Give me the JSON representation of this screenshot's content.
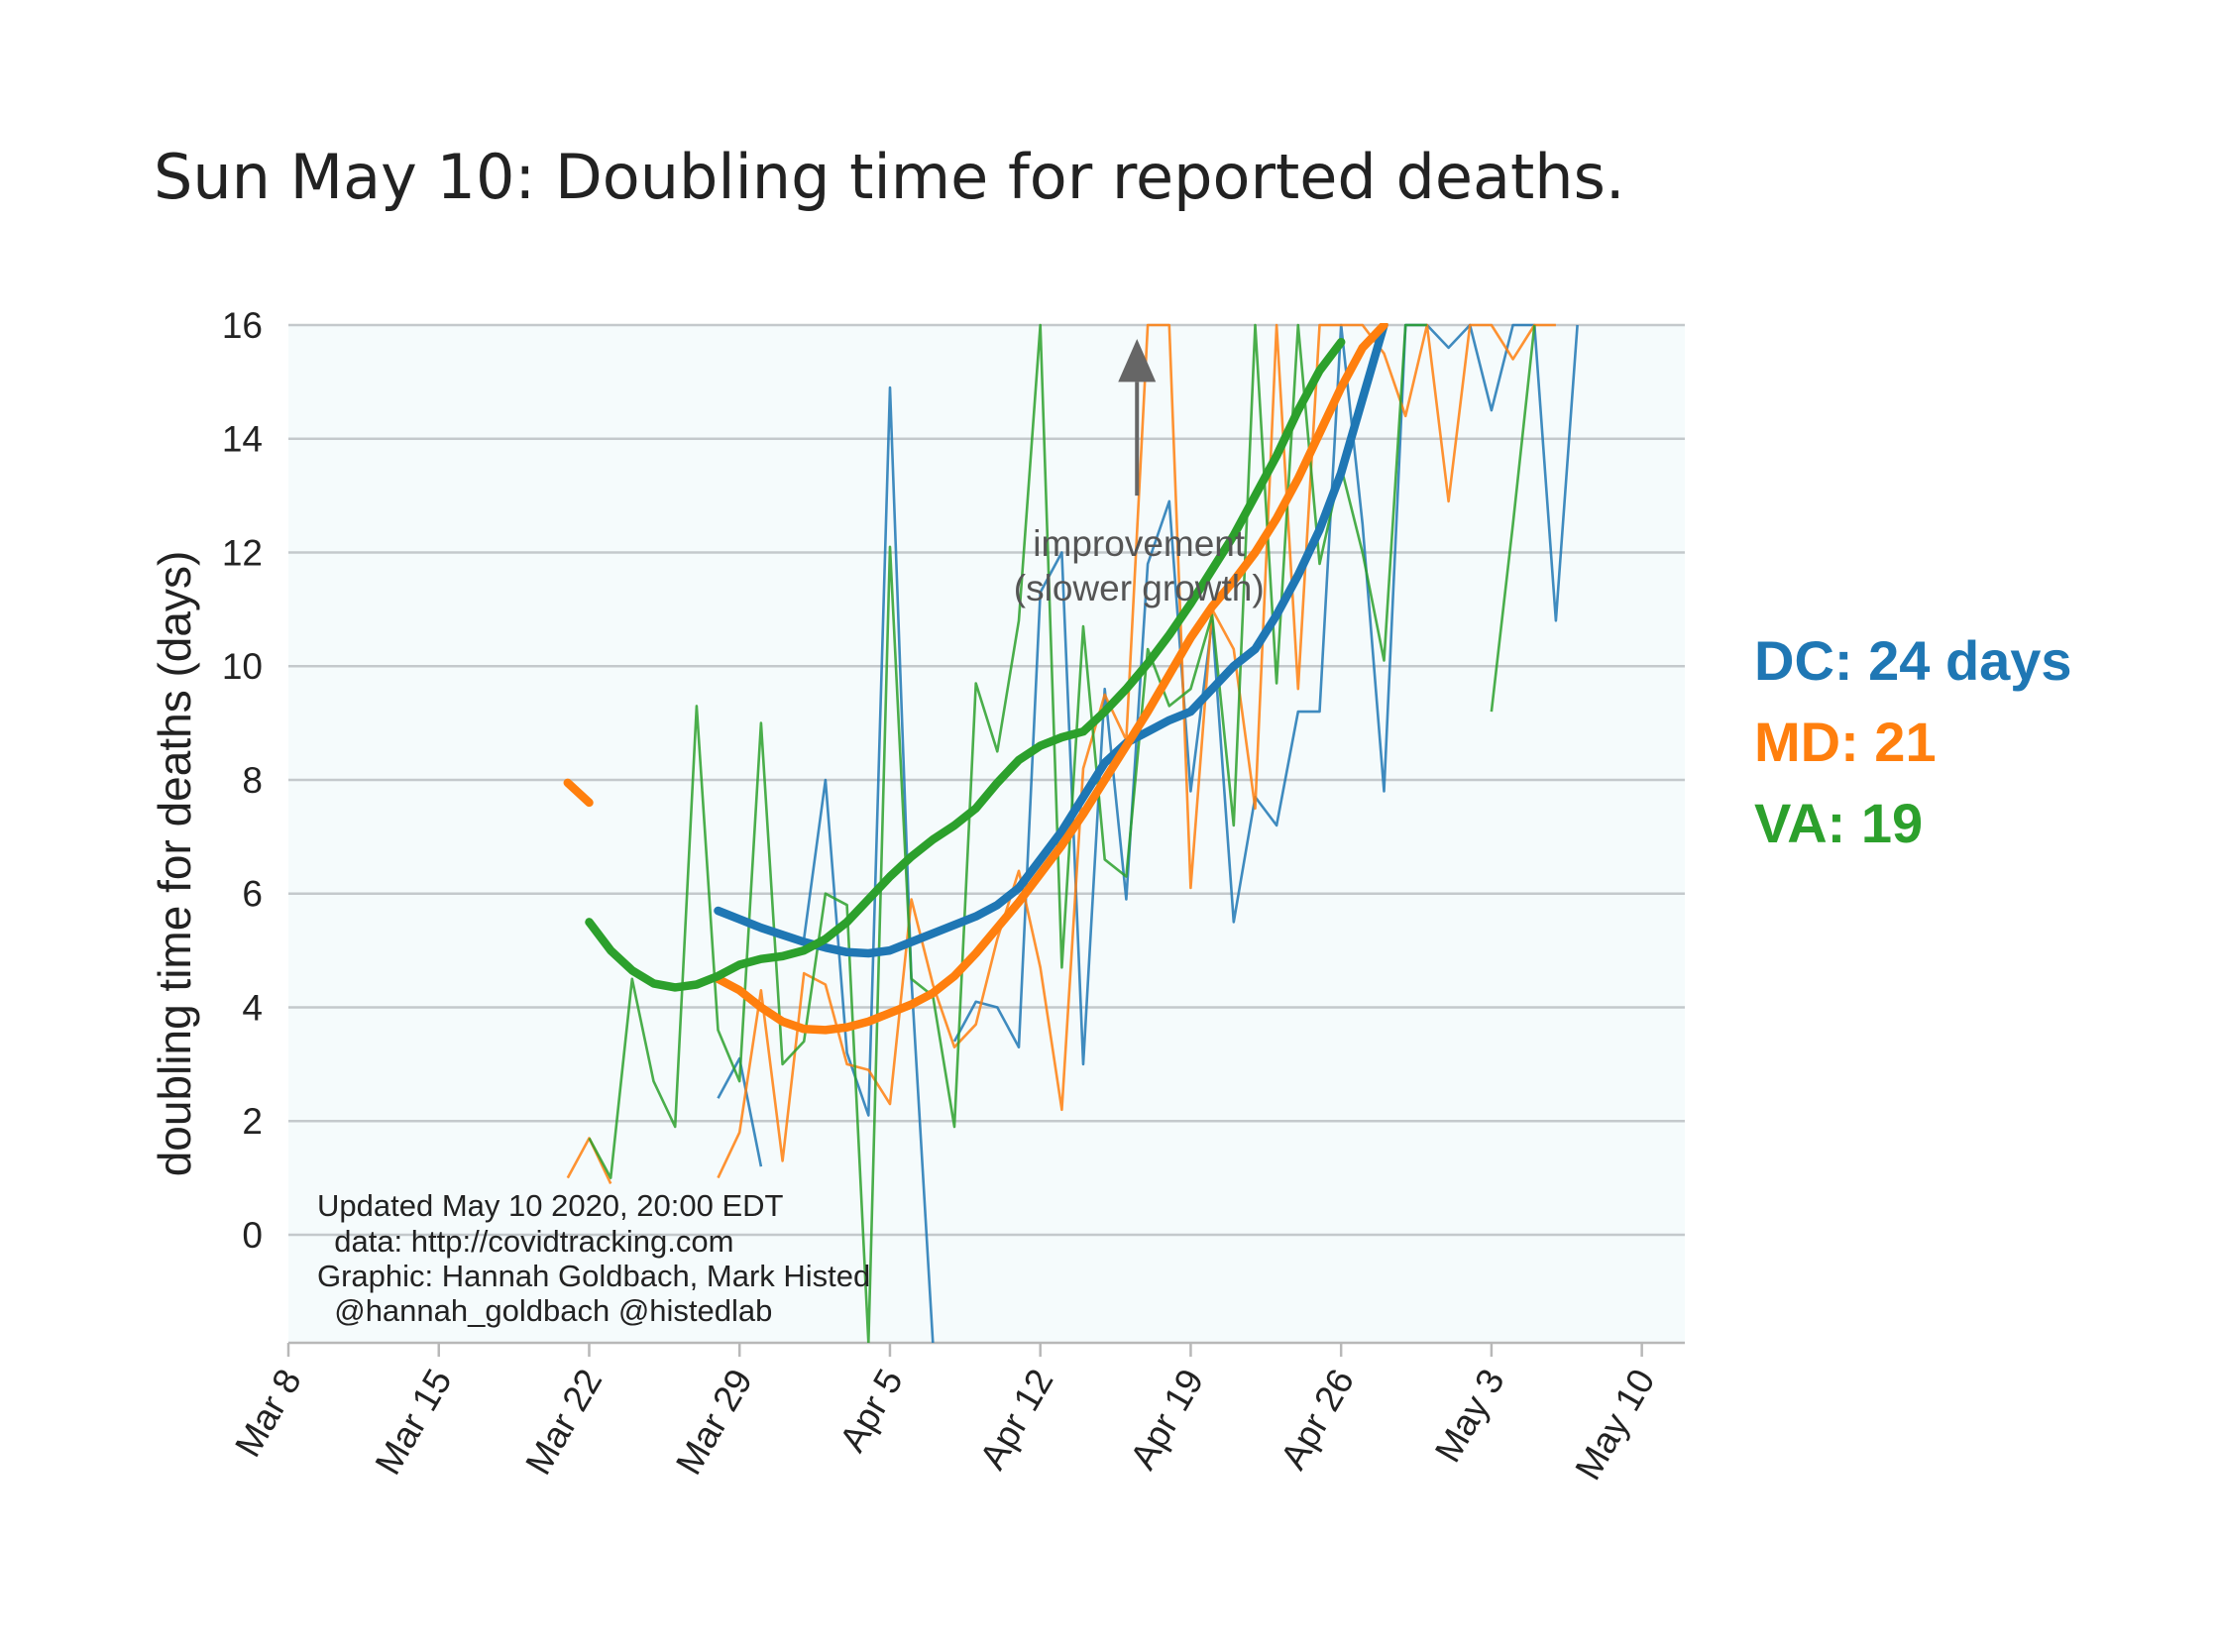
{
  "title": "Sun May 10: Doubling time for reported deaths.",
  "chart_data": {
    "type": "line",
    "ylabel": "doubling time for deaths (days)",
    "xlabel": "",
    "ylim": [
      -1.9,
      16
    ],
    "yticks": [
      0,
      2,
      4,
      6,
      8,
      10,
      12,
      14,
      16
    ],
    "xlim": [
      "2020-03-08",
      "2020-05-11"
    ],
    "xticks": [
      "Mar 8",
      "Mar 15",
      "Mar 22",
      "Mar 29",
      "Apr 5",
      "Apr 12",
      "Apr 19",
      "Apr 26",
      "May 3",
      "May 10"
    ],
    "grid": "horizontal",
    "background": "#f5fbfc",
    "series": [
      {
        "name": "DC",
        "color": "#1f77b4",
        "smoothed": [
          [
            20,
            5.7
          ],
          [
            21,
            5.55
          ],
          [
            22,
            5.4
          ],
          [
            24,
            5.15
          ],
          [
            25,
            5.05
          ],
          [
            26,
            4.97
          ],
          [
            27,
            4.95
          ],
          [
            28,
            5.0
          ],
          [
            29,
            5.15
          ],
          [
            30,
            5.3
          ],
          [
            31,
            5.45
          ],
          [
            32,
            5.6
          ],
          [
            33,
            5.8
          ],
          [
            34,
            6.1
          ],
          [
            35,
            6.6
          ],
          [
            36,
            7.1
          ],
          [
            37,
            7.7
          ],
          [
            38,
            8.3
          ],
          [
            39,
            8.65
          ],
          [
            40,
            8.85
          ],
          [
            41,
            9.05
          ],
          [
            42,
            9.2
          ],
          [
            43,
            9.6
          ],
          [
            44,
            10.0
          ],
          [
            45,
            10.3
          ],
          [
            46,
            10.9
          ],
          [
            47,
            11.6
          ],
          [
            48,
            12.4
          ],
          [
            49,
            13.4
          ],
          [
            50,
            14.7
          ],
          [
            51,
            16.0
          ]
        ],
        "raw": [
          [
            20,
            2.4
          ],
          [
            21,
            3.1
          ],
          [
            22,
            1.2
          ],
          [
            null,
            null
          ],
          [
            24,
            5.2
          ],
          [
            25,
            8.0
          ],
          [
            26,
            3.2
          ],
          [
            27,
            2.1
          ],
          [
            28,
            14.9
          ],
          [
            29,
            4.5
          ],
          [
            30,
            -1.9
          ],
          [
            null,
            null
          ],
          [
            31,
            3.4
          ],
          [
            32,
            4.1
          ],
          [
            33,
            4.0
          ],
          [
            34,
            3.3
          ],
          [
            35,
            11.3
          ],
          [
            36,
            12.0
          ],
          [
            37,
            3.0
          ],
          [
            38,
            9.6
          ],
          [
            39,
            5.9
          ],
          [
            40,
            11.8
          ],
          [
            41,
            12.9
          ],
          [
            42,
            7.8
          ],
          [
            43,
            10.8
          ],
          [
            44,
            5.5
          ],
          [
            45,
            7.7
          ],
          [
            46,
            7.2
          ],
          [
            47,
            9.2
          ],
          [
            48,
            9.2
          ],
          [
            49,
            16.0
          ],
          [
            50,
            12.5
          ],
          [
            51,
            7.8
          ],
          [
            52,
            16.0
          ],
          [
            53,
            16.0
          ],
          [
            54,
            15.6
          ],
          [
            55,
            16.0
          ],
          [
            56,
            14.5
          ],
          [
            57,
            16.0
          ],
          [
            58,
            16.0
          ],
          [
            59,
            10.8
          ],
          [
            60,
            16.0
          ]
        ]
      },
      {
        "name": "MD",
        "color": "#ff7f0e",
        "smoothed": [
          [
            13,
            7.95
          ],
          [
            14,
            7.6
          ],
          [
            null,
            null
          ],
          [
            20,
            4.5
          ],
          [
            21,
            4.3
          ],
          [
            22,
            4.0
          ],
          [
            23,
            3.75
          ],
          [
            24,
            3.62
          ],
          [
            25,
            3.6
          ],
          [
            26,
            3.65
          ],
          [
            27,
            3.75
          ],
          [
            28,
            3.9
          ],
          [
            29,
            4.05
          ],
          [
            30,
            4.25
          ],
          [
            31,
            4.55
          ],
          [
            32,
            4.95
          ],
          [
            33,
            5.4
          ],
          [
            34,
            5.85
          ],
          [
            35,
            6.35
          ],
          [
            36,
            6.85
          ],
          [
            37,
            7.4
          ],
          [
            38,
            8.0
          ],
          [
            39,
            8.6
          ],
          [
            40,
            9.2
          ],
          [
            41,
            9.85
          ],
          [
            42,
            10.5
          ],
          [
            43,
            11.05
          ],
          [
            44,
            11.5
          ],
          [
            45,
            12.0
          ],
          [
            46,
            12.6
          ],
          [
            47,
            13.3
          ],
          [
            48,
            14.1
          ],
          [
            49,
            14.9
          ],
          [
            50,
            15.6
          ],
          [
            51,
            16.0
          ]
        ],
        "raw": [
          [
            13,
            1.0
          ],
          [
            14,
            1.7
          ],
          [
            15,
            0.9
          ],
          [
            null,
            null
          ],
          [
            20,
            1.0
          ],
          [
            21,
            1.8
          ],
          [
            22,
            4.3
          ],
          [
            23,
            1.3
          ],
          [
            24,
            4.6
          ],
          [
            25,
            4.4
          ],
          [
            26,
            3.0
          ],
          [
            27,
            2.9
          ],
          [
            28,
            2.3
          ],
          [
            29,
            5.9
          ],
          [
            30,
            4.4
          ],
          [
            31,
            3.3
          ],
          [
            32,
            3.7
          ],
          [
            33,
            5.2
          ],
          [
            34,
            6.4
          ],
          [
            35,
            4.7
          ],
          [
            36,
            2.2
          ],
          [
            37,
            8.2
          ],
          [
            38,
            9.5
          ],
          [
            39,
            8.7
          ],
          [
            40,
            16.0
          ],
          [
            41,
            16.0
          ],
          [
            42,
            6.1
          ],
          [
            43,
            11.0
          ],
          [
            44,
            10.3
          ],
          [
            45,
            7.5
          ],
          [
            46,
            16.0
          ],
          [
            47,
            9.6
          ],
          [
            48,
            16.0
          ],
          [
            49,
            16.0
          ],
          [
            50,
            16.0
          ],
          [
            51,
            15.5
          ],
          [
            52,
            14.4
          ],
          [
            53,
            16.0
          ],
          [
            54,
            12.9
          ],
          [
            55,
            16.0
          ],
          [
            56,
            16.0
          ],
          [
            57,
            15.4
          ],
          [
            58,
            16.0
          ],
          [
            59,
            16.0
          ]
        ]
      },
      {
        "name": "VA",
        "color": "#2ca02c",
        "smoothed": [
          [
            14,
            5.5
          ],
          [
            15,
            5.0
          ],
          [
            16,
            4.65
          ],
          [
            17,
            4.42
          ],
          [
            18,
            4.35
          ],
          [
            19,
            4.4
          ],
          [
            20,
            4.55
          ],
          [
            21,
            4.75
          ],
          [
            22,
            4.85
          ],
          [
            23,
            4.9
          ],
          [
            24,
            5.0
          ],
          [
            25,
            5.2
          ],
          [
            26,
            5.5
          ],
          [
            27,
            5.9
          ],
          [
            28,
            6.3
          ],
          [
            29,
            6.65
          ],
          [
            30,
            6.95
          ],
          [
            31,
            7.2
          ],
          [
            32,
            7.5
          ],
          [
            33,
            7.95
          ],
          [
            34,
            8.35
          ],
          [
            35,
            8.6
          ],
          [
            36,
            8.75
          ],
          [
            37,
            8.85
          ],
          [
            38,
            9.2
          ],
          [
            39,
            9.6
          ],
          [
            40,
            10.05
          ],
          [
            41,
            10.55
          ],
          [
            42,
            11.1
          ],
          [
            43,
            11.7
          ],
          [
            44,
            12.3
          ],
          [
            45,
            13.0
          ],
          [
            46,
            13.7
          ],
          [
            47,
            14.5
          ],
          [
            48,
            15.2
          ],
          [
            49,
            15.7
          ]
        ],
        "raw": [
          [
            14,
            1.7
          ],
          [
            15,
            1.0
          ],
          [
            16,
            4.5
          ],
          [
            17,
            2.7
          ],
          [
            18,
            1.9
          ],
          [
            19,
            9.3
          ],
          [
            20,
            3.6
          ],
          [
            21,
            2.7
          ],
          [
            22,
            9.0
          ],
          [
            23,
            3.0
          ],
          [
            24,
            3.4
          ],
          [
            25,
            6.0
          ],
          [
            26,
            5.8
          ],
          [
            27,
            -1.9
          ],
          [
            28,
            12.1
          ],
          [
            29,
            4.5
          ],
          [
            30,
            4.2
          ],
          [
            31,
            1.9
          ],
          [
            32,
            9.7
          ],
          [
            33,
            8.5
          ],
          [
            34,
            10.8
          ],
          [
            35,
            16.0
          ],
          [
            36,
            4.7
          ],
          [
            37,
            10.7
          ],
          [
            38,
            6.6
          ],
          [
            39,
            6.3
          ],
          [
            40,
            10.3
          ],
          [
            41,
            9.3
          ],
          [
            42,
            9.6
          ],
          [
            43,
            10.9
          ],
          [
            44,
            7.2
          ],
          [
            45,
            16.0
          ],
          [
            46,
            9.7
          ],
          [
            47,
            16.0
          ],
          [
            48,
            11.8
          ],
          [
            49,
            13.5
          ],
          [
            50,
            12.0
          ],
          [
            51,
            10.1
          ],
          [
            52,
            16.0
          ],
          [
            53,
            16.0
          ],
          [
            null,
            null
          ],
          [
            56,
            9.2
          ],
          [
            57,
            12.5
          ],
          [
            58,
            16.0
          ]
        ]
      }
    ],
    "annotation": {
      "line1": "improvement",
      "line2": "(slower growth)",
      "x": 39.5,
      "y_text": 11.85,
      "arrow_from": 13.0,
      "arrow_to": 16.0
    },
    "credits": [
      "Updated May 10 2020, 20:00 EDT",
      "  data: http://covidtracking.com",
      "Graphic: Hannah Goldbach, Mark Histed",
      "  @hannah_goldbach @histedlab"
    ],
    "legend": [
      {
        "text": "DC: 24 days",
        "color": "#1f77b4"
      },
      {
        "text": "MD: 21",
        "color": "#ff7f0e"
      },
      {
        "text": "VA: 19",
        "color": "#2ca02c"
      }
    ]
  }
}
